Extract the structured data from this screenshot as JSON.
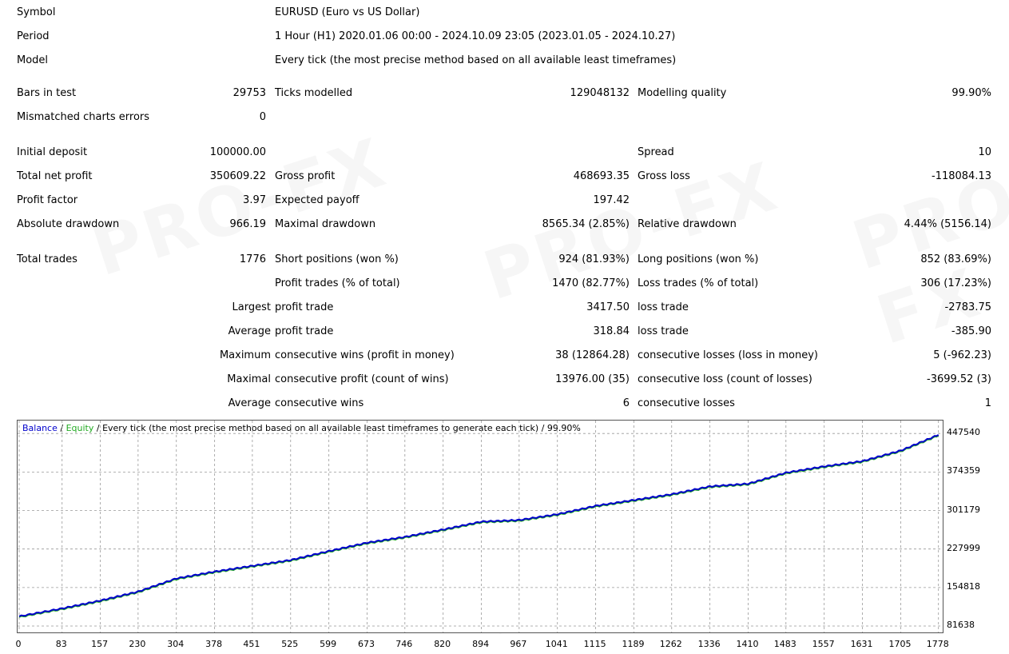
{
  "header": {
    "symbol_label": "Symbol",
    "symbol_value": "EURUSD (Euro vs US Dollar)",
    "period_label": "Period",
    "period_value": "1 Hour (H1) 2020.01.06 00:00 - 2024.10.09 23:05 (2023.01.05 - 2024.10.27)",
    "model_label": "Model",
    "model_value": "Every tick (the most precise method based on all available least timeframes)"
  },
  "stats": {
    "bars_label": "Bars in test",
    "bars_value": "29753",
    "ticks_label": "Ticks modelled",
    "ticks_value": "129048132",
    "quality_label": "Modelling quality",
    "quality_value": "99.90%",
    "mismatch_label": "Mismatched charts errors",
    "mismatch_value": "0",
    "deposit_label": "Initial deposit",
    "deposit_value": "100000.00",
    "spread_label": "Spread",
    "spread_value": "10",
    "netprofit_label": "Total net profit",
    "netprofit_value": "350609.22",
    "grossprofit_label": "Gross profit",
    "grossprofit_value": "468693.35",
    "grossloss_label": "Gross loss",
    "grossloss_value": "-118084.13",
    "pf_label": "Profit factor",
    "pf_value": "3.97",
    "payoff_label": "Expected payoff",
    "payoff_value": "197.42",
    "absdd_label": "Absolute drawdown",
    "absdd_value": "966.19",
    "maxdd_label": "Maximal drawdown",
    "maxdd_value": "8565.34 (2.85%)",
    "reldd_label": "Relative drawdown",
    "reldd_value": "4.44% (5156.14)",
    "trades_label": "Total trades",
    "trades_value": "1776",
    "short_label": "Short positions (won %)",
    "short_value": "924 (81.93%)",
    "long_label": "Long positions (won %)",
    "long_value": "852 (83.69%)",
    "ptrades_label": "Profit trades (% of total)",
    "ptrades_value": "1470 (82.77%)",
    "ltrades_label": "Loss trades (% of total)",
    "ltrades_value": "306 (17.23%)",
    "largest_prefix": "Largest",
    "largest_profit_label": "profit trade",
    "largest_profit_value": "3417.50",
    "largest_loss_label": "loss trade",
    "largest_loss_value": "-2783.75",
    "average_prefix": "Average",
    "average_profit_label": "profit trade",
    "average_profit_value": "318.84",
    "average_loss_label": "loss trade",
    "average_loss_value": "-385.90",
    "maximum_prefix": "Maximum",
    "maxwins_label": "consecutive wins (profit in money)",
    "maxwins_value": "38 (12864.28)",
    "maxlosses_label": "consecutive losses (loss in money)",
    "maxlosses_value": "5 (-962.23)",
    "maximal_prefix": "Maximal",
    "maxprofit_label": "consecutive profit (count of wins)",
    "maxprofit_value": "13976.00 (35)",
    "maxloss_label": "consecutive loss (count of losses)",
    "maxloss_value": "-3699.52 (3)",
    "average2_prefix": "Average",
    "avgwins_label": "consecutive wins",
    "avgwins_value": "6",
    "avglosses_label": "consecutive losses",
    "avglosses_value": "1"
  },
  "chart_data": {
    "type": "line",
    "title_balance": "Balance",
    "title_sep1": " / ",
    "title_equity": "Equity",
    "title_rest": " / Every tick (the most precise method based on all available least timeframes to generate each tick) / 99.90%",
    "colors": {
      "balance": "#0000cc",
      "equity": "#22aa22",
      "grid": "#999999"
    },
    "x_ticks": [
      "0",
      "83",
      "157",
      "230",
      "304",
      "378",
      "451",
      "525",
      "599",
      "673",
      "746",
      "820",
      "894",
      "967",
      "1041",
      "1115",
      "1189",
      "1262",
      "1336",
      "1410",
      "1483",
      "1557",
      "1631",
      "1705",
      "1778"
    ],
    "y_ticks": [
      "447540",
      "374359",
      "301179",
      "227999",
      "154818",
      "81638"
    ],
    "ylim": [
      81638,
      460000
    ],
    "xlim": [
      0,
      1780
    ],
    "series": [
      {
        "name": "Balance",
        "x": [
          0,
          83,
          157,
          230,
          304,
          378,
          451,
          525,
          599,
          673,
          746,
          820,
          894,
          967,
          1041,
          1115,
          1189,
          1262,
          1336,
          1410,
          1483,
          1557,
          1631,
          1705,
          1778
        ],
        "values": [
          100000,
          115000,
          130000,
          147000,
          172000,
          185000,
          196000,
          207000,
          224000,
          240000,
          251000,
          265000,
          280000,
          283000,
          294000,
          310000,
          321000,
          332000,
          347000,
          352000,
          373000,
          385000,
          395000,
          415000,
          445000
        ]
      }
    ]
  },
  "watermark": "PRO-FX"
}
